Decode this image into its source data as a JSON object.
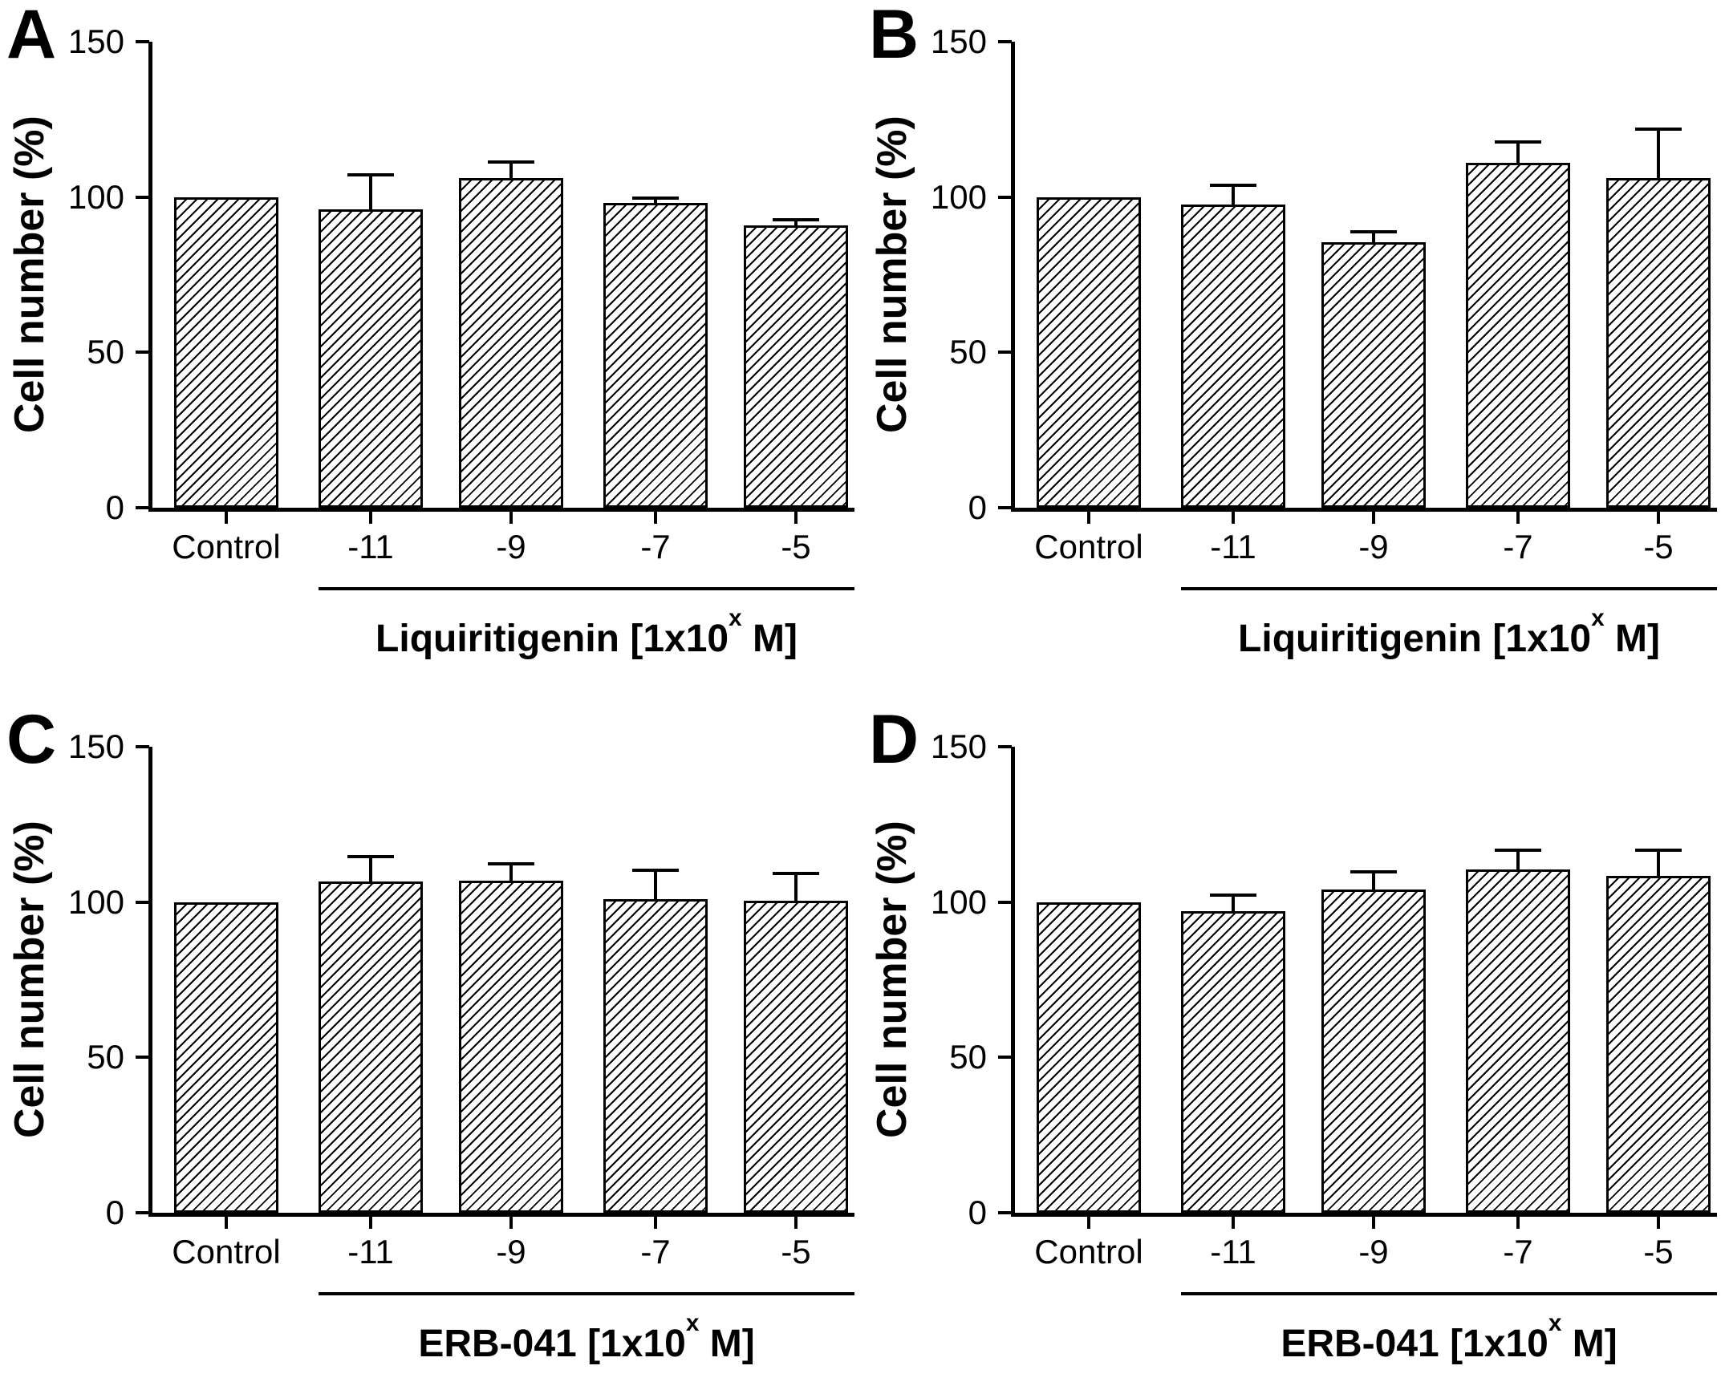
{
  "chart_data": [
    {
      "panel": "A",
      "type": "bar",
      "ylabel": "Cell number (%)",
      "categories": [
        "Control",
        "-11",
        "-9",
        "-7",
        "-5"
      ],
      "values": [
        100,
        96,
        106,
        98,
        91
      ],
      "errors": [
        0,
        11,
        5,
        1.5,
        1.5
      ],
      "yticks": [
        0,
        50,
        100,
        150
      ],
      "ylim": [
        0,
        150
      ],
      "xlabel": "Liquiritigenin [1x10^x M]",
      "xlabel_parts": {
        "pre": "Liquiritigenin [1x10",
        "sup": "x",
        "post": " M]"
      },
      "bar_fill": "#ffffff",
      "bar_hatch_color": "#000000",
      "axis_color": "#000000"
    },
    {
      "panel": "B",
      "type": "bar",
      "ylabel": "Cell number (%)",
      "categories": [
        "Control",
        "-11",
        "-9",
        "-7",
        "-5"
      ],
      "values": [
        100,
        97.5,
        85.5,
        111,
        106
      ],
      "errors": [
        0,
        6,
        3,
        6.5,
        15.5
      ],
      "yticks": [
        0,
        50,
        100,
        150
      ],
      "ylim": [
        0,
        150
      ],
      "xlabel": "Liquiritigenin [1x10^x M]",
      "xlabel_parts": {
        "pre": "Liquiritigenin [1x10",
        "sup": "x",
        "post": " M]"
      },
      "bar_fill": "#ffffff",
      "bar_hatch_color": "#000000",
      "axis_color": "#000000"
    },
    {
      "panel": "C",
      "type": "bar",
      "ylabel": "Cell number (%)",
      "categories": [
        "Control",
        "-11",
        "-9",
        "-7",
        "-5"
      ],
      "values": [
        100,
        106.5,
        107,
        101,
        100.5
      ],
      "errors": [
        0,
        8,
        5,
        9,
        8.5
      ],
      "yticks": [
        0,
        50,
        100,
        150
      ],
      "ylim": [
        0,
        150
      ],
      "xlabel": "ERB-041 [1x10^x M]",
      "xlabel_parts": {
        "pre": "ERB-041 [1x10",
        "sup": "x",
        "post": " M]"
      },
      "bar_fill": "#ffffff",
      "bar_hatch_color": "#000000",
      "axis_color": "#000000"
    },
    {
      "panel": "D",
      "type": "bar",
      "ylabel": "Cell number (%)",
      "categories": [
        "Control",
        "-11",
        "-9",
        "-7",
        "-5"
      ],
      "values": [
        100,
        97,
        104,
        110.5,
        108.5
      ],
      "errors": [
        0,
        5,
        5.5,
        6,
        8
      ],
      "yticks": [
        0,
        50,
        100,
        150
      ],
      "ylim": [
        0,
        150
      ],
      "xlabel": "ERB-041 [1x10^x M]",
      "xlabel_parts": {
        "pre": "ERB-041 [1x10",
        "sup": "x",
        "post": " M]"
      },
      "bar_fill": "#ffffff",
      "bar_hatch_color": "#000000",
      "axis_color": "#000000"
    }
  ]
}
